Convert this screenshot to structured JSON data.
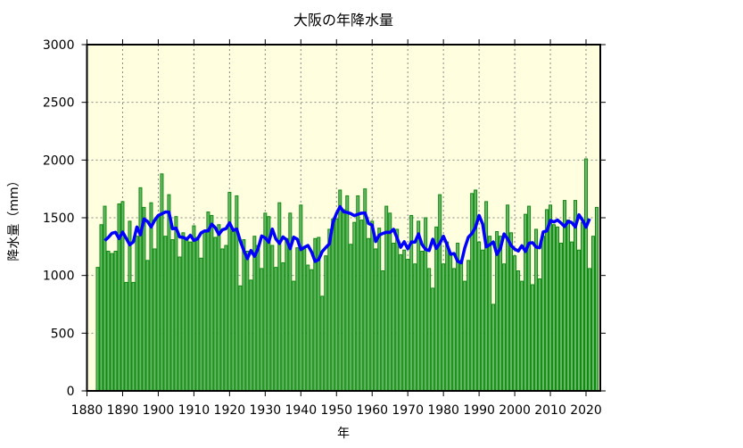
{
  "chart_data": {
    "type": "bar",
    "title": "大阪の年降水量",
    "xlabel": "年",
    "ylabel": "降水量（mm）",
    "xlim": [
      1880,
      2024
    ],
    "ylim": [
      0,
      3000
    ],
    "xticks": [
      1880,
      1890,
      1900,
      1910,
      1920,
      1930,
      1940,
      1950,
      1960,
      1970,
      1980,
      1990,
      2000,
      2010,
      2020
    ],
    "yticks": [
      0,
      500,
      1000,
      1500,
      2000,
      2500,
      3000
    ],
    "grid": true,
    "colors": {
      "background": "#ffffe0",
      "bar_fill": "#66bb66",
      "bar_stroke": "#118811",
      "line": "#0000ff",
      "grid": "#888888"
    },
    "years_start": 1883,
    "values": [
      1070,
      1440,
      1600,
      1210,
      1190,
      1210,
      1620,
      1640,
      940,
      1470,
      940,
      1340,
      1760,
      1590,
      1130,
      1630,
      1230,
      1520,
      1880,
      1340,
      1700,
      1310,
      1510,
      1160,
      1370,
      1320,
      1290,
      1430,
      1330,
      1150,
      1380,
      1550,
      1520,
      1330,
      1440,
      1230,
      1260,
      1720,
      1380,
      1690,
      910,
      1310,
      1210,
      960,
      1340,
      1260,
      1060,
      1540,
      1510,
      1260,
      1070,
      1630,
      1110,
      1320,
      1540,
      950,
      1240,
      1610,
      1230,
      1090,
      1050,
      1320,
      1330,
      820,
      1170,
      1400,
      1490,
      1490,
      1740,
      1570,
      1690,
      1270,
      1460,
      1690,
      1480,
      1750,
      1320,
      1470,
      1230,
      1410,
      1040,
      1600,
      1540,
      1280,
      1400,
      1180,
      1220,
      1140,
      1520,
      1100,
      1470,
      1210,
      1500,
      1060,
      890,
      1420,
      1700,
      1100,
      1290,
      1190,
      1060,
      1280,
      1130,
      950,
      1130,
      1710,
      1740,
      1290,
      1220,
      1640,
      1340,
      750,
      1380,
      1340,
      1100,
      1610,
      1370,
      1170,
      1040,
      950,
      1530,
      1600,
      920,
      1400,
      970,
      1340,
      1570,
      1610,
      1440,
      1420,
      1280,
      1650,
      1480,
      1290,
      1650,
      1220,
      1460,
      2010,
      1060,
      1340,
      1590
    ],
    "moving_average": {
      "type": "line",
      "window_years": 5
    }
  }
}
